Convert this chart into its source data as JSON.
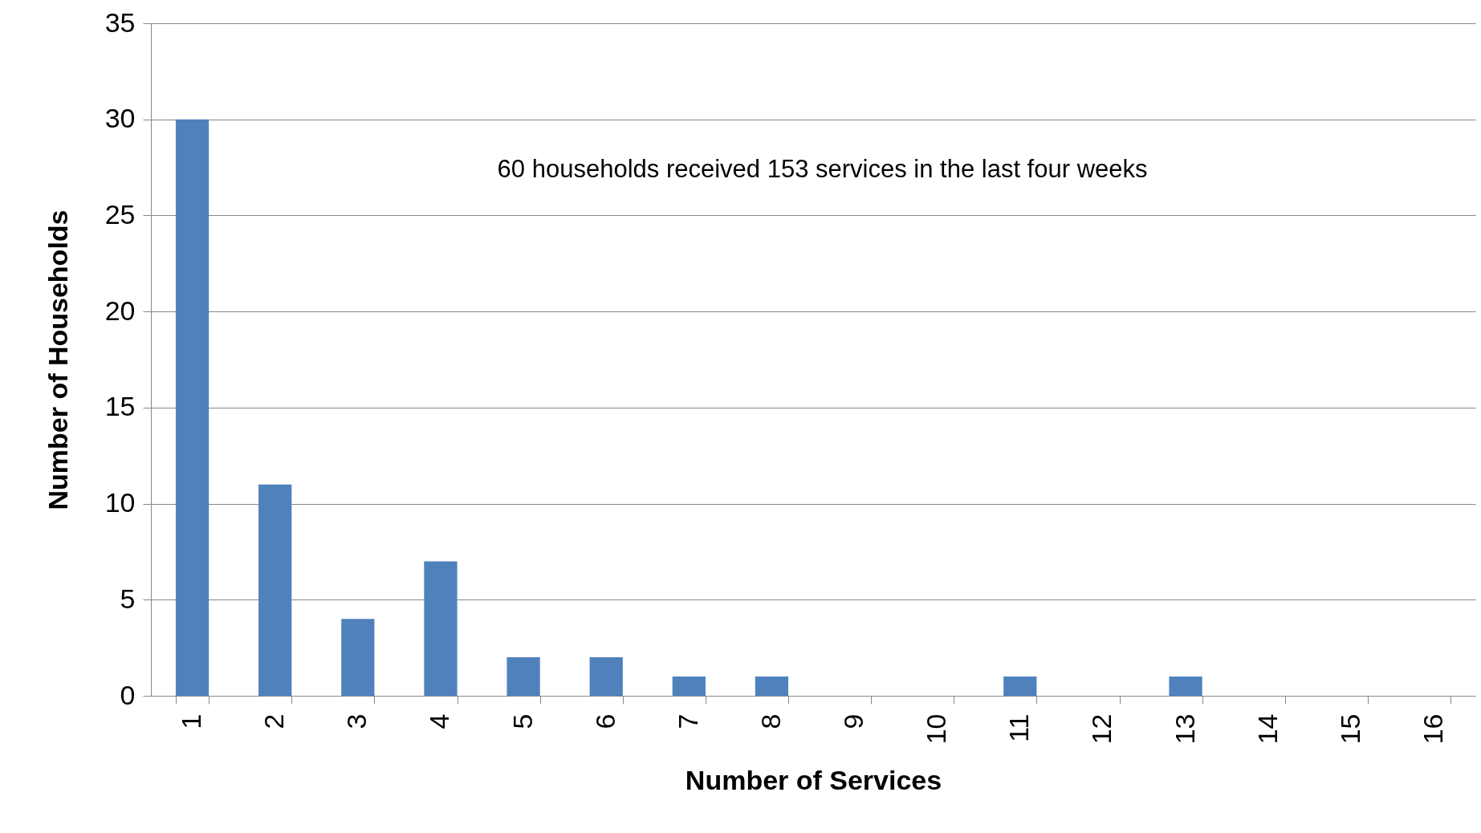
{
  "chart_data": {
    "type": "bar",
    "xlabel": "Number of Services",
    "ylabel": "Number of Households",
    "categories": [
      "1",
      "2",
      "3",
      "4",
      "5",
      "6",
      "7",
      "8",
      "9",
      "10",
      "11",
      "12",
      "13",
      "14",
      "15",
      "16"
    ],
    "values": [
      30,
      11,
      4,
      7,
      2,
      2,
      1,
      1,
      0,
      0,
      1,
      0,
      1,
      0,
      0,
      0
    ],
    "color": "#4f81bd",
    "ylim": [
      0,
      35
    ],
    "yticks": [
      0,
      5,
      10,
      15,
      20,
      25,
      30,
      35
    ],
    "grid": "y",
    "annotations": [
      "60 households received 153 services in the last four weeks"
    ]
  }
}
